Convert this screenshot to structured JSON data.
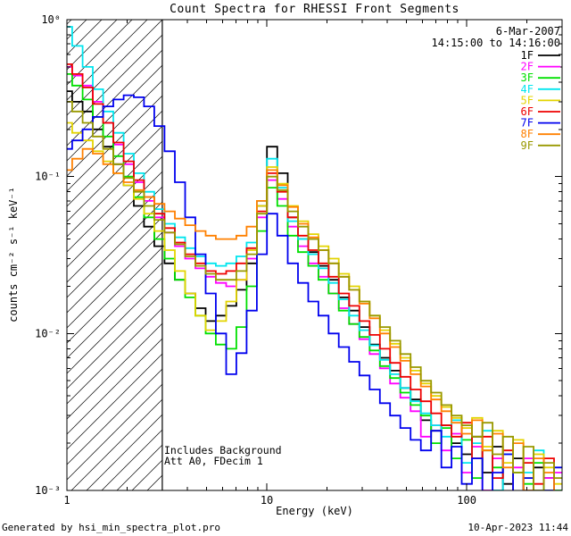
{
  "title": "Count Spectra for RHESSI Front Segments",
  "annotations": {
    "date": "6-Mar-2007",
    "time_range": "14:15:00 to 14:16:00",
    "background_note": "Includes Background",
    "attenuator_note": "Att A0, FDecim 1"
  },
  "footer": {
    "generator": "Generated by hsi_min_spectra_plot.pro",
    "timestamp": "10-Apr-2023 11:44"
  },
  "chart_data": {
    "type": "line",
    "subtype": "step-histogram",
    "title": "Count Spectra for RHESSI Front Segments",
    "xlabel": "Energy (keV)",
    "ylabel": "counts cm⁻² s⁻¹ keV⁻¹",
    "xscale": "log",
    "yscale": "log",
    "xlim": [
      1,
      300
    ],
    "ylim": [
      0.001,
      1
    ],
    "grid": false,
    "legend_position": "top-right-inside",
    "x_ticks": [
      {
        "value": 1,
        "label": "1"
      },
      {
        "value": 10,
        "label": "10"
      },
      {
        "value": 100,
        "label": "100"
      }
    ],
    "y_ticks": [
      {
        "value": 1,
        "label": "10⁰"
      },
      {
        "value": 0.1,
        "label": "10⁻¹"
      },
      {
        "value": 0.01,
        "label": "10⁻²"
      },
      {
        "value": 0.001,
        "label": "10⁻³"
      }
    ],
    "excluded_region": {
      "xmin": 1,
      "xmax": 3,
      "style": "diagonal-hatch"
    },
    "x": [
      1.0,
      1.13,
      1.27,
      1.43,
      1.61,
      1.81,
      2.04,
      2.29,
      2.58,
      2.9,
      3.27,
      3.68,
      4.14,
      4.66,
      5.24,
      5.9,
      6.64,
      7.47,
      8.41,
      9.46,
      10.6,
      12.0,
      13.5,
      15.2,
      17.1,
      19.2,
      21.6,
      24.3,
      27.4,
      30.8,
      34.7,
      39.0,
      43.9,
      49.4,
      55.6,
      62.5,
      70.4,
      79.2,
      89.1,
      100,
      113,
      127,
      143,
      161,
      181,
      204,
      229,
      258,
      290
    ],
    "series": [
      {
        "name": "1F",
        "color": "#000000",
        "y": [
          0.35,
          0.3,
          0.26,
          0.2,
          0.155,
          0.12,
          0.088,
          0.065,
          0.048,
          0.036,
          0.028,
          0.022,
          0.018,
          0.0145,
          0.012,
          0.013,
          0.015,
          0.019,
          0.028,
          0.065,
          0.155,
          0.105,
          0.055,
          0.04,
          0.033,
          0.027,
          0.022,
          0.017,
          0.014,
          0.011,
          0.0085,
          0.007,
          0.0058,
          0.0045,
          0.0038,
          0.0028,
          0.0024,
          0.0026,
          0.002,
          0.0017,
          0.0022,
          0.0013,
          0.0019,
          0.0011,
          0.0016,
          0.0009,
          0.0014,
          0.0012,
          0.0008
        ]
      },
      {
        "name": "2F",
        "color": "#ff00ff",
        "y": [
          0.5,
          0.44,
          0.38,
          0.3,
          0.22,
          0.16,
          0.12,
          0.092,
          0.07,
          0.055,
          0.044,
          0.036,
          0.03,
          0.026,
          0.023,
          0.021,
          0.02,
          0.022,
          0.03,
          0.055,
          0.095,
          0.072,
          0.048,
          0.036,
          0.028,
          0.023,
          0.018,
          0.0145,
          0.0115,
          0.0092,
          0.0074,
          0.006,
          0.0048,
          0.0039,
          0.0032,
          0.0022,
          0.0026,
          0.0018,
          0.0023,
          0.0013,
          0.0019,
          0.001,
          0.0016,
          0.0008,
          0.0014,
          0.0016,
          0.0007,
          0.0012,
          0.0013
        ]
      },
      {
        "name": "3F",
        "color": "#00e000",
        "y": [
          0.45,
          0.38,
          0.31,
          0.24,
          0.18,
          0.135,
          0.1,
          0.074,
          0.055,
          0.04,
          0.03,
          0.022,
          0.017,
          0.013,
          0.01,
          0.0085,
          0.008,
          0.011,
          0.02,
          0.045,
          0.085,
          0.065,
          0.042,
          0.033,
          0.027,
          0.022,
          0.018,
          0.014,
          0.0115,
          0.0095,
          0.0078,
          0.0062,
          0.0052,
          0.0042,
          0.0035,
          0.003,
          0.002,
          0.0025,
          0.0016,
          0.0021,
          0.0012,
          0.0018,
          0.0014,
          0.0007,
          0.0013,
          0.0011,
          0.0015,
          0.0006,
          0.001
        ]
      },
      {
        "name": "4F",
        "color": "#00e5ee",
        "y": [
          0.9,
          0.68,
          0.5,
          0.36,
          0.26,
          0.19,
          0.14,
          0.105,
          0.08,
          0.062,
          0.05,
          0.041,
          0.035,
          0.031,
          0.028,
          0.027,
          0.028,
          0.031,
          0.038,
          0.07,
          0.13,
          0.085,
          0.052,
          0.04,
          0.032,
          0.026,
          0.021,
          0.0165,
          0.013,
          0.0105,
          0.0084,
          0.0068,
          0.0055,
          0.0045,
          0.0037,
          0.0031,
          0.0026,
          0.0022,
          0.0028,
          0.0015,
          0.002,
          0.0024,
          0.001,
          0.0017,
          0.0006,
          0.0013,
          0.0018,
          0.0008,
          0.0005
        ]
      },
      {
        "name": "5F",
        "color": "#e3d400",
        "y": [
          0.22,
          0.19,
          0.17,
          0.145,
          0.125,
          0.105,
          0.088,
          0.072,
          0.058,
          0.045,
          0.034,
          0.025,
          0.018,
          0.013,
          0.0105,
          0.012,
          0.016,
          0.022,
          0.034,
          0.065,
          0.115,
          0.09,
          0.065,
          0.052,
          0.043,
          0.036,
          0.03,
          0.024,
          0.02,
          0.016,
          0.013,
          0.0105,
          0.0086,
          0.007,
          0.0058,
          0.0048,
          0.004,
          0.0034,
          0.0029,
          0.0025,
          0.0029,
          0.0019,
          0.0024,
          0.0015,
          0.0021,
          0.0012,
          0.0017,
          0.0014,
          0.0011
        ]
      },
      {
        "name": "6F",
        "color": "#ee0000",
        "y": [
          0.52,
          0.45,
          0.37,
          0.29,
          0.22,
          0.165,
          0.125,
          0.095,
          0.074,
          0.058,
          0.047,
          0.038,
          0.032,
          0.028,
          0.025,
          0.024,
          0.025,
          0.028,
          0.035,
          0.06,
          0.105,
          0.08,
          0.055,
          0.042,
          0.034,
          0.028,
          0.023,
          0.018,
          0.015,
          0.012,
          0.0098,
          0.008,
          0.0065,
          0.0053,
          0.0044,
          0.0037,
          0.0031,
          0.0026,
          0.0022,
          0.0027,
          0.0016,
          0.0022,
          0.0012,
          0.0018,
          0.0009,
          0.0015,
          0.0011,
          0.0016,
          0.0007
        ]
      },
      {
        "name": "7F",
        "color": "#0000ee",
        "y": [
          0.15,
          0.17,
          0.2,
          0.24,
          0.28,
          0.31,
          0.33,
          0.32,
          0.28,
          0.21,
          0.145,
          0.092,
          0.055,
          0.032,
          0.018,
          0.01,
          0.0055,
          0.0075,
          0.014,
          0.032,
          0.058,
          0.042,
          0.028,
          0.021,
          0.016,
          0.013,
          0.01,
          0.0082,
          0.0066,
          0.0054,
          0.0044,
          0.0036,
          0.003,
          0.0025,
          0.0021,
          0.0018,
          0.0024,
          0.0014,
          0.0019,
          0.0011,
          0.0016,
          0.0008,
          0.0013,
          0.0017,
          0.0007,
          0.0012,
          0.0005,
          0.001,
          0.0014
        ]
      },
      {
        "name": "8F",
        "color": "#ff8000",
        "y": [
          0.11,
          0.13,
          0.15,
          0.14,
          0.12,
          0.105,
          0.092,
          0.082,
          0.074,
          0.067,
          0.06,
          0.054,
          0.049,
          0.045,
          0.042,
          0.04,
          0.04,
          0.042,
          0.048,
          0.07,
          0.11,
          0.088,
          0.064,
          0.05,
          0.041,
          0.034,
          0.028,
          0.023,
          0.019,
          0.0155,
          0.0125,
          0.01,
          0.0082,
          0.0067,
          0.0055,
          0.0046,
          0.0038,
          0.0032,
          0.0027,
          0.0023,
          0.0028,
          0.0018,
          0.0023,
          0.0014,
          0.002,
          0.001,
          0.0016,
          0.0013,
          0.0009
        ]
      },
      {
        "name": "9F",
        "color": "#999900",
        "y": [
          0.3,
          0.26,
          0.22,
          0.18,
          0.15,
          0.12,
          0.098,
          0.08,
          0.065,
          0.053,
          0.044,
          0.037,
          0.031,
          0.027,
          0.024,
          0.022,
          0.022,
          0.025,
          0.032,
          0.058,
          0.1,
          0.082,
          0.06,
          0.048,
          0.04,
          0.034,
          0.028,
          0.023,
          0.019,
          0.016,
          0.013,
          0.011,
          0.009,
          0.0074,
          0.0061,
          0.005,
          0.0042,
          0.0035,
          0.003,
          0.0026,
          0.0022,
          0.0027,
          0.0017,
          0.0022,
          0.0013,
          0.0019,
          0.001,
          0.0015,
          0.0012
        ]
      }
    ]
  }
}
